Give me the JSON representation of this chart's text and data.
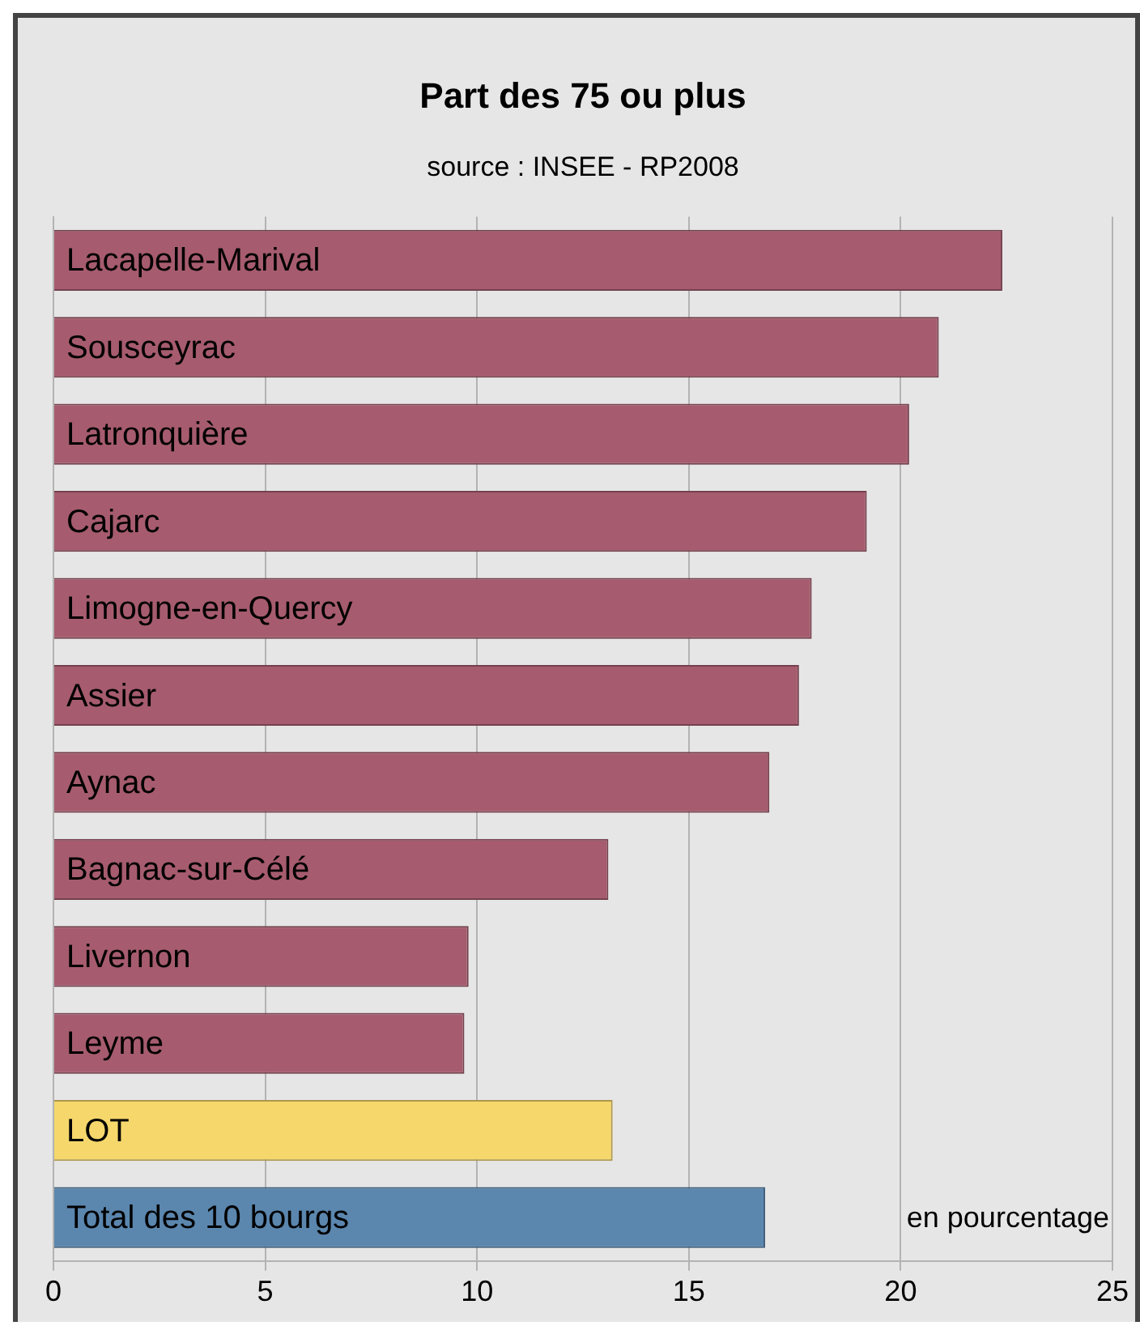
{
  "chart_data": {
    "type": "bar",
    "orientation": "horizontal",
    "title": "Part des 75 ou plus",
    "subtitle": "source : INSEE - RP2008",
    "categories": [
      "Lacapelle-Marival",
      "Sousceyrac",
      "Latronquière",
      "Cajarc",
      "Limogne-en-Quercy",
      "Assier",
      "Aynac",
      "Bagnac-sur-Célé",
      "Livernon",
      "Leyme",
      "LOT",
      "Total des 10 bourgs"
    ],
    "values": [
      22.4,
      20.9,
      20.2,
      19.2,
      17.9,
      17.6,
      16.9,
      13.1,
      9.8,
      9.7,
      13.2,
      16.8
    ],
    "colors": [
      "#a65c6e",
      "#a65c6e",
      "#a65c6e",
      "#a65c6e",
      "#a65c6e",
      "#a65c6e",
      "#a65c6e",
      "#a65c6e",
      "#a65c6e",
      "#a65c6e",
      "#f5d76b",
      "#5b86ae"
    ],
    "xlim": [
      0,
      25
    ],
    "xticks": [
      0,
      5,
      10,
      15,
      20,
      25
    ],
    "grid": "x",
    "legend": false,
    "annotations": [
      "en pourcentage"
    ]
  }
}
